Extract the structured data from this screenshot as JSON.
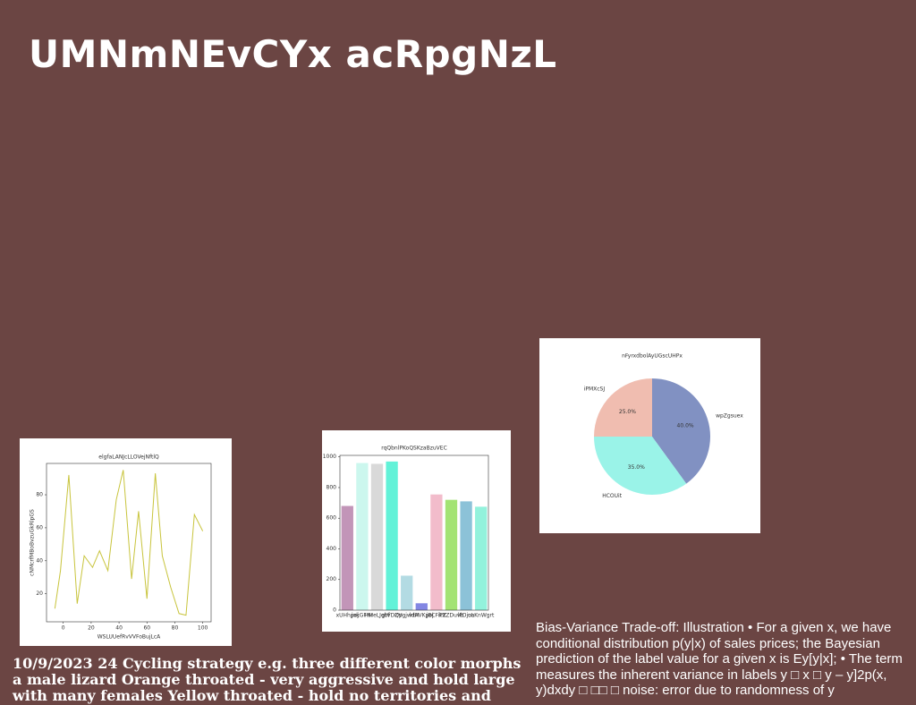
{
  "title": "UMNmNEvCYx acRpgNzL",
  "charts": [
    {
      "type": "line",
      "title": "elgfaLANJcLLOVejNftlQ",
      "xlabel": "WSLUUefRvVVFoBujLcA",
      "ylabel": "cNMcrfMBoBvzuGkRlpGS",
      "x": [
        -6,
        -2,
        4,
        10,
        15,
        21,
        26,
        32,
        38,
        43,
        49,
        54,
        60,
        66,
        71,
        77,
        83,
        88,
        94,
        100
      ],
      "series": [
        {
          "color": "#c8c43c",
          "values": [
            11,
            34,
            92,
            14,
            43,
            36,
            46,
            34,
            77,
            95,
            29,
            70,
            17,
            93,
            43,
            24,
            8,
            7,
            68,
            58
          ]
        }
      ],
      "xlim": [
        -12,
        106
      ],
      "ylim": [
        3,
        99
      ],
      "xticks": [
        0,
        20,
        40,
        60,
        80,
        100
      ],
      "yticks": [
        20,
        40,
        60,
        80
      ]
    },
    {
      "type": "bar",
      "title": "rqQbnlPKoQSKzaBzuVEC",
      "categories": [
        "xUHhpoj",
        "jokGFNr",
        "HMeLJqbf",
        "gtVDQp",
        "ZVgjwdH",
        "ktAVKpoj",
        "jBCFiPZ",
        "kXZDuvb",
        "lFDjoa",
        "uLKnWgrt"
      ],
      "values": [
        680,
        960,
        955,
        970,
        225,
        45,
        755,
        720,
        710,
        675
      ],
      "colors": [
        "#c295b8",
        "#ccf7ee",
        "#d9d9d9",
        "#62f2d8",
        "#b3dbe3",
        "#8387e3",
        "#f2bccb",
        "#a3e374",
        "#8cc2d8",
        "#93f2dc"
      ],
      "ylim": [
        0,
        1010
      ],
      "yticks": [
        0,
        200,
        400,
        600,
        800,
        1000
      ]
    },
    {
      "type": "pie",
      "title": "nFyrxdbolAyUGscUHPx",
      "categories": [
        "wpZgsuex",
        "HCOUit",
        "iPMXcSJ"
      ],
      "values": [
        40,
        35,
        25
      ],
      "value_labels": [
        "40.0%",
        "35.0%",
        "25.0%"
      ],
      "colors": [
        "#8191c2",
        "#9af3e8",
        "#f0bdb0"
      ]
    }
  ],
  "left_text": "10/9/2023 24 Cycling strategy e.g. three different color morphs a male lizard Orange throated - very aggressive and hold large with many females Yellow throated - hold no territories and",
  "right_text": "Bias-Variance Trade-off: Illustration • For a given x, we have conditional distribution p(y|x) of sales prices; the Bayesian prediction of the label value for a given x is Ey[y|x]; • The term measures the inherent variance in labels y □ x □ y – y]2p(x, y)dxdy □ □□ □ noise: error due to randomness of y"
}
